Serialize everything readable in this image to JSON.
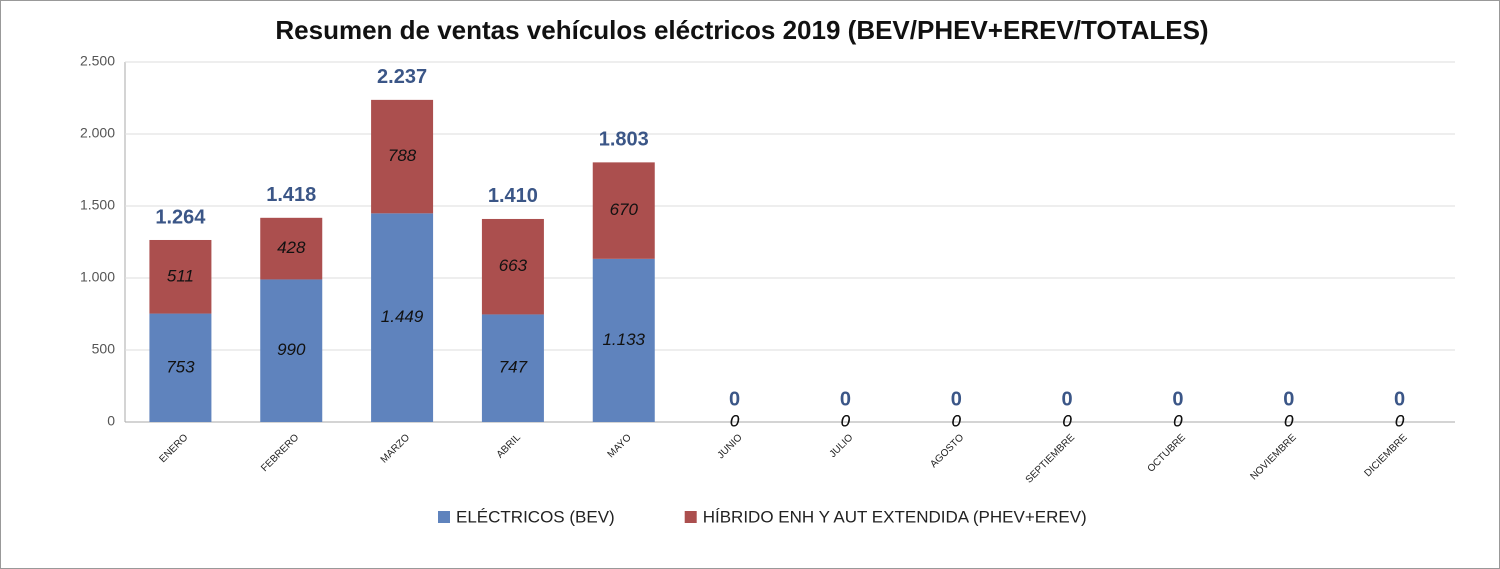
{
  "chart_data": {
    "type": "stacked_bar",
    "title": "Resumen de ventas vehículos eléctricos 2019 (BEV/PHEV+EREV/TOTALES)",
    "categories": [
      "ENERO",
      "FEBRERO",
      "MARZO",
      "ABRIL",
      "MAYO",
      "JUNIO",
      "JULIO",
      "AGOSTO",
      "SEPTIEMBRE",
      "OCTUBRE",
      "NOVIEMBRE",
      "DICIEMBRE"
    ],
    "series": [
      {
        "name": "ELÉCTRICOS (BEV)",
        "color": "#5f83bd",
        "values": [
          753,
          990,
          1449,
          747,
          1133,
          0,
          0,
          0,
          0,
          0,
          0,
          0
        ],
        "value_labels": [
          "753",
          "990",
          "1.449",
          "747",
          "1.133",
          "0",
          "0",
          "0",
          "0",
          "0",
          "0",
          "0"
        ]
      },
      {
        "name": "HÍBRIDO ENH Y AUT EXTENDIDA (PHEV+EREV)",
        "color": "#ab4f4e",
        "values": [
          511,
          428,
          788,
          663,
          670,
          0,
          0,
          0,
          0,
          0,
          0,
          0
        ],
        "value_labels": [
          "511",
          "428",
          "788",
          "663",
          "670",
          "0",
          "0",
          "0",
          "0",
          "0",
          "0",
          "0"
        ]
      }
    ],
    "totals": {
      "values": [
        1264,
        1418,
        2237,
        1410,
        1803,
        0,
        0,
        0,
        0,
        0,
        0,
        0
      ],
      "value_labels": [
        "1.264",
        "1.418",
        "2.237",
        "1.410",
        "1.803",
        "0",
        "0",
        "0",
        "0",
        "0",
        "0",
        "0"
      ]
    },
    "ylim": [
      0,
      2500
    ],
    "yticks": [
      0,
      500,
      {
        "value": 1000,
        "label": "1.000"
      },
      {
        "value": 1500,
        "label": "1.500"
      },
      {
        "value": 2000,
        "label": "2.000"
      },
      {
        "value": 2500,
        "label": "2.500"
      }
    ],
    "grid": true,
    "legend": "bottom"
  }
}
